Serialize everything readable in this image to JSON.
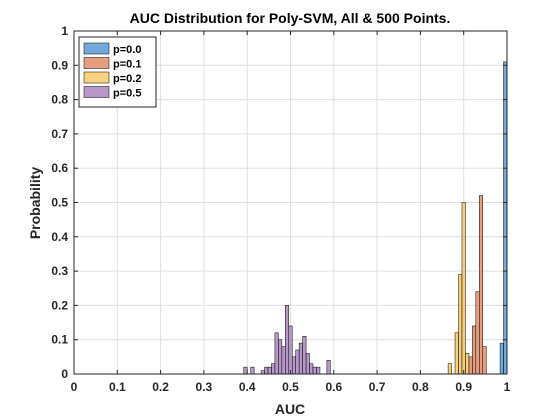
{
  "chart_data": {
    "type": "bar",
    "title": "AUC Distribution for Poly-SVM, All & 500 Points.",
    "xlabel": "AUC",
    "ylabel": "Probability",
    "xlim": [
      0,
      1
    ],
    "ylim": [
      0,
      1
    ],
    "xticks": [
      "0",
      "0.1",
      "0.2",
      "0.3",
      "0.4",
      "0.5",
      "0.6",
      "0.7",
      "0.8",
      "0.9",
      "1"
    ],
    "yticks": [
      "0",
      "0.1",
      "0.2",
      "0.3",
      "0.4",
      "0.5",
      "0.6",
      "0.7",
      "0.8",
      "0.9",
      "1"
    ],
    "grid": true,
    "legend_position": "top-left",
    "series": [
      {
        "name": "p=0.0",
        "color": "#5b9bd5",
        "bins": [
          {
            "x0": 0.984,
            "x1": 0.992,
            "y": 0.09
          },
          {
            "x0": 0.992,
            "x1": 1.0,
            "y": 0.91
          }
        ]
      },
      {
        "name": "p=0.1",
        "color": "#e38d6a",
        "bins": [
          {
            "x0": 0.912,
            "x1": 0.92,
            "y": 0.05
          },
          {
            "x0": 0.92,
            "x1": 0.928,
            "y": 0.14
          },
          {
            "x0": 0.928,
            "x1": 0.936,
            "y": 0.24
          },
          {
            "x0": 0.936,
            "x1": 0.944,
            "y": 0.52
          },
          {
            "x0": 0.944,
            "x1": 0.952,
            "y": 0.08
          }
        ]
      },
      {
        "name": "p=0.2",
        "color": "#f7c96b",
        "bins": [
          {
            "x0": 0.864,
            "x1": 0.872,
            "y": 0.03
          },
          {
            "x0": 0.88,
            "x1": 0.888,
            "y": 0.12
          },
          {
            "x0": 0.888,
            "x1": 0.896,
            "y": 0.29
          },
          {
            "x0": 0.896,
            "x1": 0.904,
            "y": 0.5
          },
          {
            "x0": 0.904,
            "x1": 0.912,
            "y": 0.06
          }
        ]
      },
      {
        "name": "p=0.5",
        "color": "#a987bf",
        "bins": [
          {
            "x0": 0.392,
            "x1": 0.4,
            "y": 0.02
          },
          {
            "x0": 0.408,
            "x1": 0.416,
            "y": 0.02
          },
          {
            "x0": 0.432,
            "x1": 0.44,
            "y": 0.01
          },
          {
            "x0": 0.44,
            "x1": 0.448,
            "y": 0.02
          },
          {
            "x0": 0.448,
            "x1": 0.456,
            "y": 0.02
          },
          {
            "x0": 0.456,
            "x1": 0.464,
            "y": 0.03
          },
          {
            "x0": 0.464,
            "x1": 0.472,
            "y": 0.12
          },
          {
            "x0": 0.472,
            "x1": 0.48,
            "y": 0.1
          },
          {
            "x0": 0.48,
            "x1": 0.488,
            "y": 0.08
          },
          {
            "x0": 0.488,
            "x1": 0.496,
            "y": 0.2
          },
          {
            "x0": 0.496,
            "x1": 0.504,
            "y": 0.14
          },
          {
            "x0": 0.504,
            "x1": 0.512,
            "y": 0.05
          },
          {
            "x0": 0.512,
            "x1": 0.52,
            "y": 0.07
          },
          {
            "x0": 0.52,
            "x1": 0.528,
            "y": 0.09
          },
          {
            "x0": 0.528,
            "x1": 0.536,
            "y": 0.11
          },
          {
            "x0": 0.536,
            "x1": 0.544,
            "y": 0.06
          },
          {
            "x0": 0.544,
            "x1": 0.552,
            "y": 0.03
          },
          {
            "x0": 0.552,
            "x1": 0.56,
            "y": 0.02
          },
          {
            "x0": 0.56,
            "x1": 0.568,
            "y": 0.02
          },
          {
            "x0": 0.584,
            "x1": 0.592,
            "y": 0.04
          }
        ]
      }
    ]
  }
}
